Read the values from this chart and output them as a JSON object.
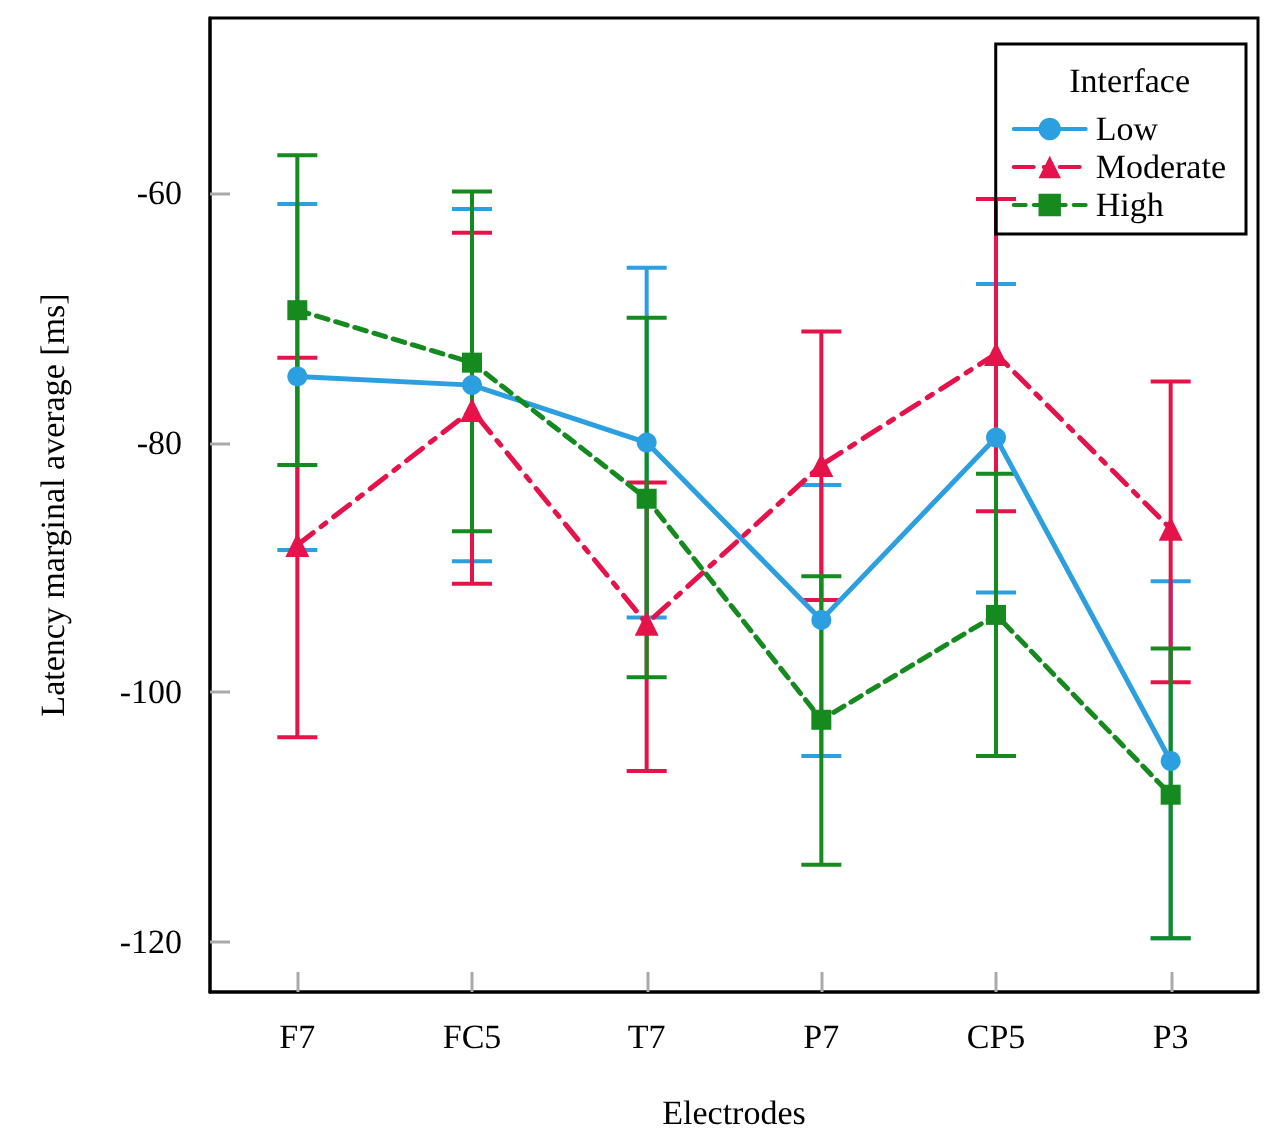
{
  "chart_data": {
    "type": "line",
    "xlabel": "Electrodes",
    "ylabel": "Latency marginal average [ms]",
    "legend_title": "Interface",
    "legend": "top right",
    "grid": false,
    "categories": [
      "F7",
      "FC5",
      "T7",
      "P7",
      "CP5",
      "P3"
    ],
    "ylim": [
      -124,
      -46
    ],
    "yticks": [
      -60,
      -80,
      -100,
      -120
    ],
    "series": [
      {
        "name": "Low",
        "color": "#2b9fe0",
        "marker": "circle",
        "line_style": "solid",
        "values": [
          -74.7,
          -75.4,
          -80.0,
          -94.2,
          -79.6,
          -105.5
        ],
        "errors": [
          [
            -88.6,
            -60.9
          ],
          [
            -89.5,
            -61.3
          ],
          [
            -94.0,
            -66.0
          ],
          [
            -105.1,
            -83.4
          ],
          [
            -92.0,
            -67.3
          ],
          [
            -119.7,
            -91.1
          ]
        ]
      },
      {
        "name": "Moderate",
        "color": "#e5134a",
        "marker": "triangle",
        "line_style": "dashdot",
        "values": [
          -88.2,
          -77.4,
          -94.5,
          -81.8,
          -72.9,
          -86.9
        ],
        "errors": [
          [
            -103.6,
            -73.2
          ],
          [
            -91.3,
            -63.2
          ],
          [
            -106.3,
            -83.2
          ],
          [
            -92.6,
            -71.1
          ],
          [
            -85.5,
            -60.5
          ],
          [
            -99.2,
            -75.1
          ]
        ]
      },
      {
        "name": "High",
        "color": "#158a1e",
        "marker": "square",
        "line_style": "dashed",
        "values": [
          -69.4,
          -73.6,
          -84.5,
          -102.2,
          -93.8,
          -108.2
        ],
        "errors": [
          [
            -81.8,
            -57.0
          ],
          [
            -87.1,
            -59.9
          ],
          [
            -98.8,
            -70.0
          ],
          [
            -113.8,
            -90.7
          ],
          [
            -105.1,
            -82.5
          ],
          [
            -119.7,
            -96.5
          ]
        ]
      }
    ]
  }
}
